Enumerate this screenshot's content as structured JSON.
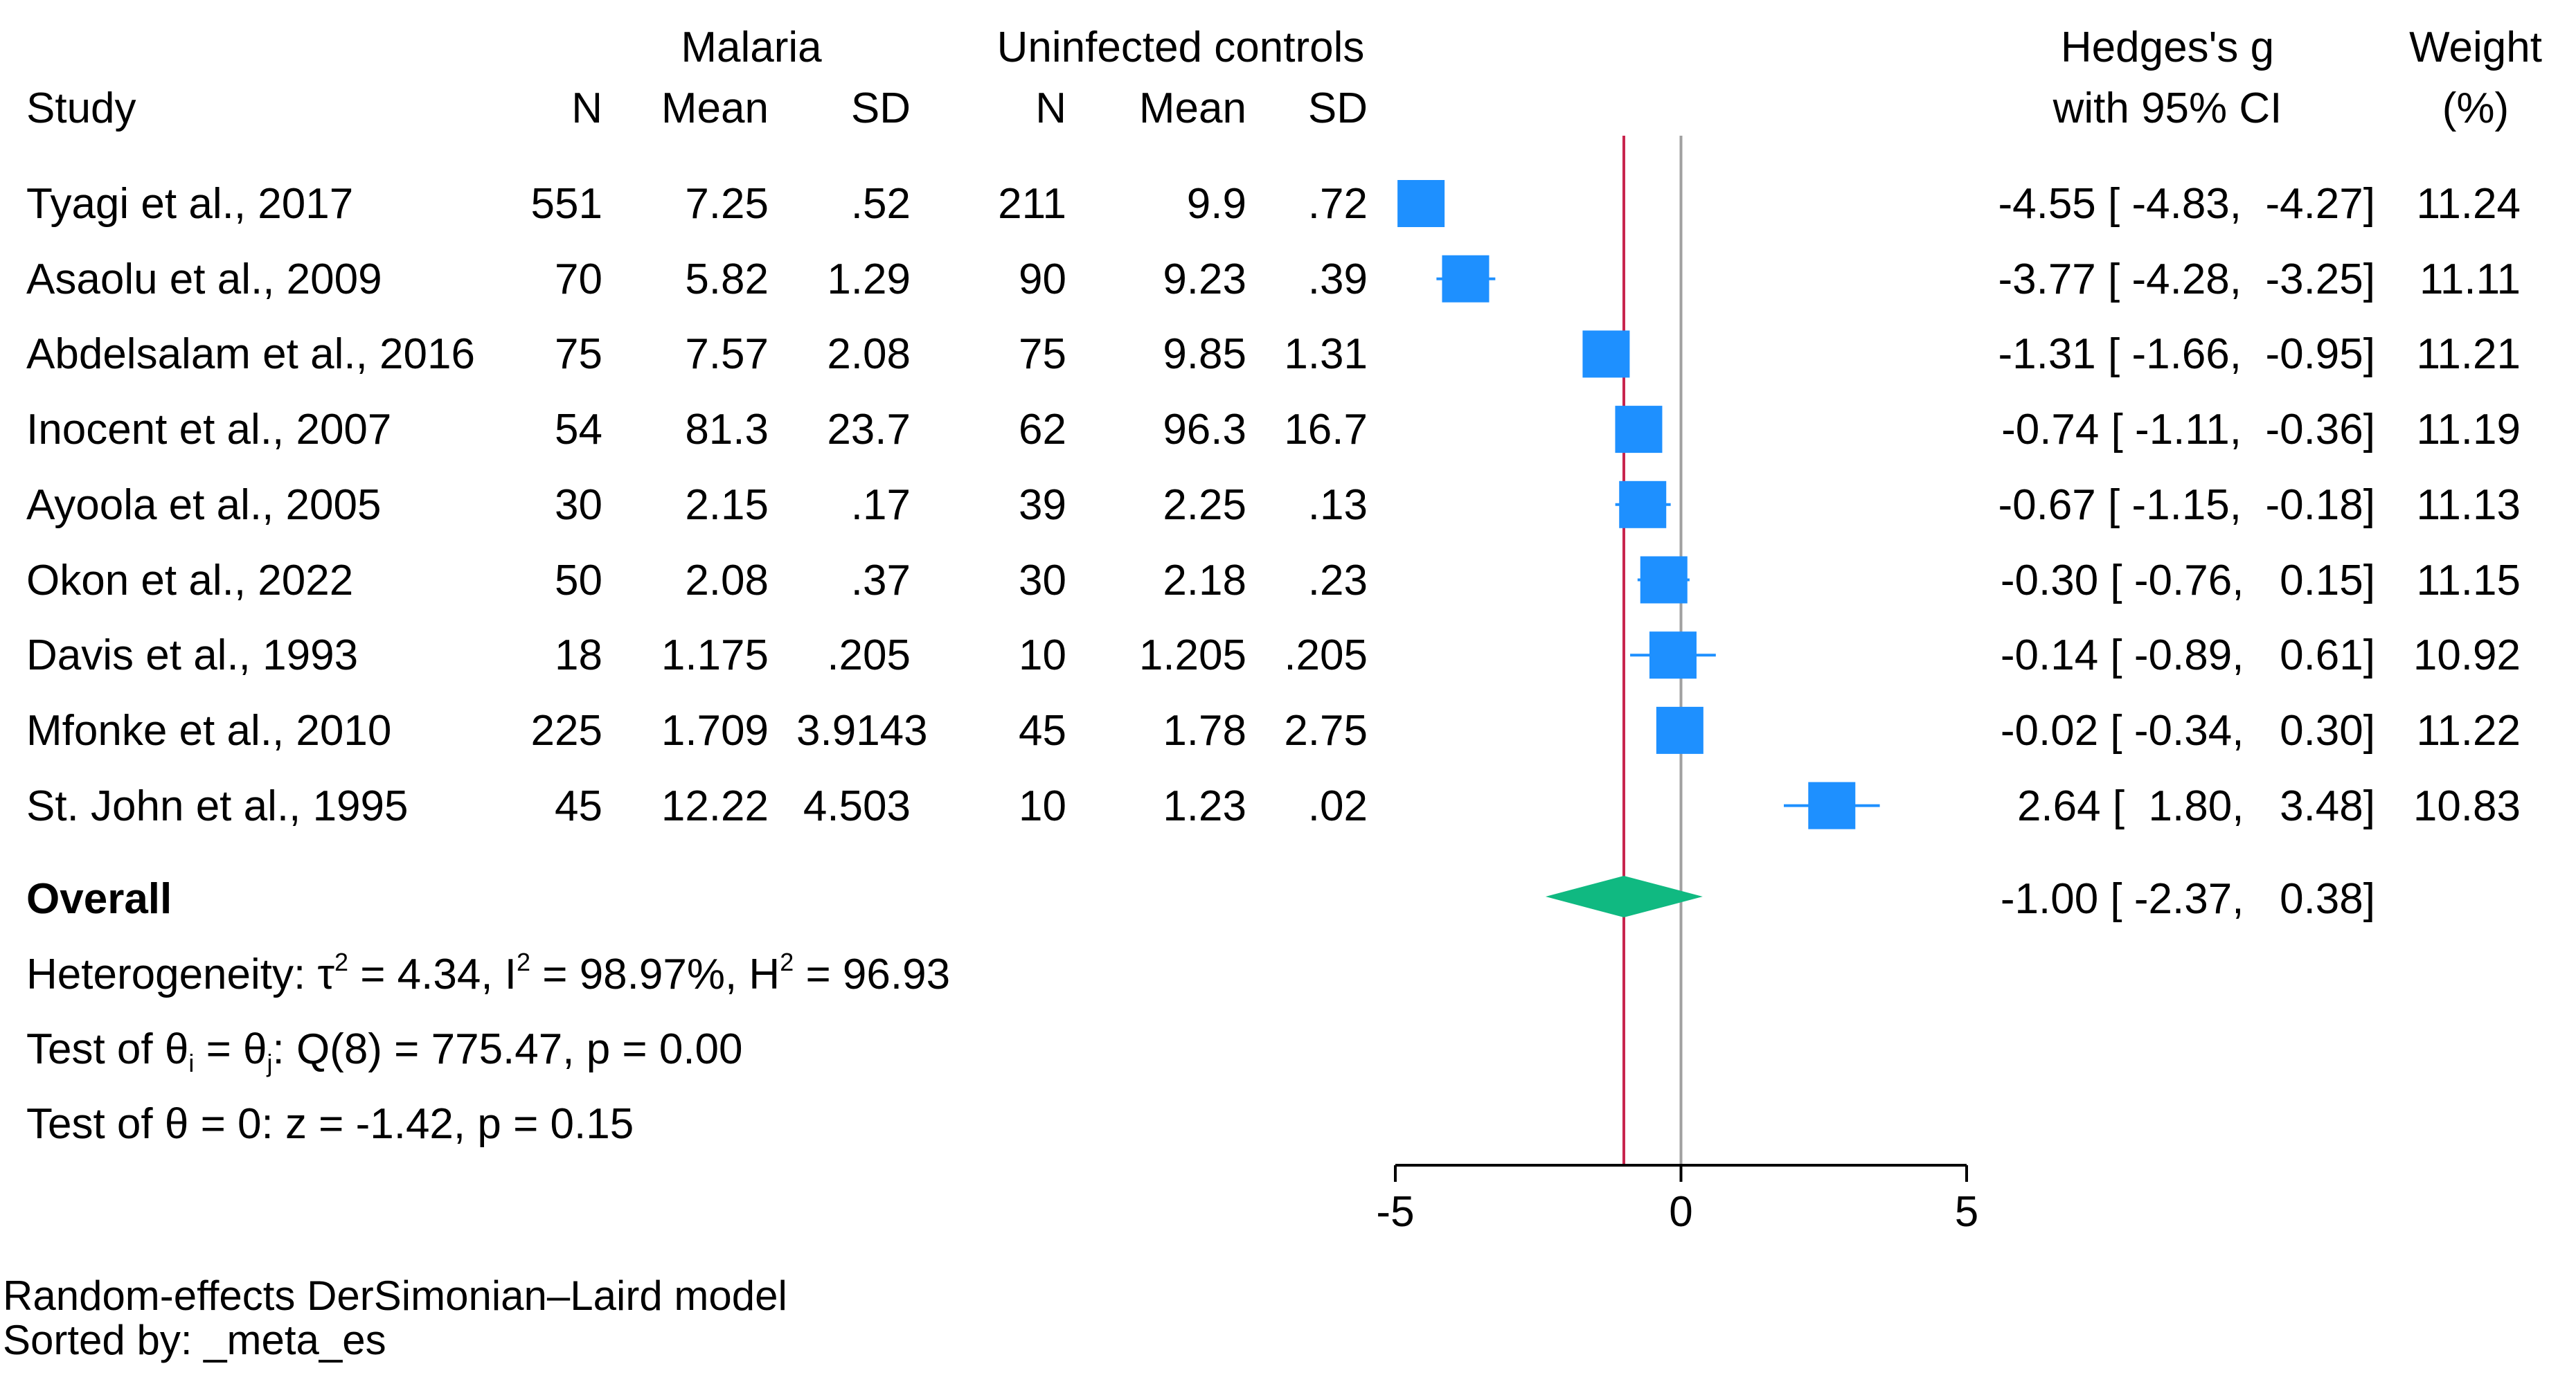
{
  "header": {
    "group1": "Malaria",
    "group2": "Uninfected controls",
    "col_study": "Study",
    "col_n1": "N",
    "col_mean1": "Mean",
    "col_sd1": "SD",
    "col_n2": "N",
    "col_mean2": "Mean",
    "col_sd2": "SD",
    "col_es_line1": "Hedges's g",
    "col_es_line2": "with 95% CI",
    "col_w_line1": "Weight",
    "col_w_line2": "(%)"
  },
  "chart_data": {
    "type": "forest",
    "xlim": [
      -5,
      5
    ],
    "xticks": [
      -5,
      0,
      5
    ],
    "xtick_labels": [
      "-5",
      "0",
      "5"
    ],
    "reference_line": 0,
    "overall_line": -1.0,
    "colors": {
      "marker": "#1e90ff",
      "diamond": "#10b981",
      "overall_line": "#c8254e",
      "zero_line": "#a0a0a0"
    },
    "studies": [
      {
        "study": "Tyagi et al., 2017",
        "n1": "551",
        "mean1": "7.25",
        "sd1": ".52",
        "n2": "211",
        "mean2": "9.9",
        "sd2": ".72",
        "g": -4.55,
        "lo": -4.83,
        "hi": -4.27,
        "weight": 11.24,
        "es_text": "-4.55 [ -4.83,  -4.27]",
        "w_text": "11.24"
      },
      {
        "study": "Asaolu et al., 2009",
        "n1": "70",
        "mean1": "5.82",
        "sd1": "1.29",
        "n2": "90",
        "mean2": "9.23",
        "sd2": ".39",
        "g": -3.77,
        "lo": -4.28,
        "hi": -3.25,
        "weight": 11.11,
        "es_text": "-3.77 [ -4.28,  -3.25]",
        "w_text": "11.11"
      },
      {
        "study": "Abdelsalam et al., 2016",
        "n1": "75",
        "mean1": "7.57",
        "sd1": "2.08",
        "n2": "75",
        "mean2": "9.85",
        "sd2": "1.31",
        "g": -1.31,
        "lo": -1.66,
        "hi": -0.95,
        "weight": 11.21,
        "es_text": "-1.31 [ -1.66,  -0.95]",
        "w_text": "11.21"
      },
      {
        "study": "Inocent et al., 2007",
        "n1": "54",
        "mean1": "81.3",
        "sd1": "23.7",
        "n2": "62",
        "mean2": "96.3",
        "sd2": "16.7",
        "g": -0.74,
        "lo": -1.11,
        "hi": -0.36,
        "weight": 11.19,
        "es_text": "-0.74 [ -1.11,  -0.36]",
        "w_text": "11.19"
      },
      {
        "study": "Ayoola et al., 2005",
        "n1": "30",
        "mean1": "2.15",
        "sd1": ".17",
        "n2": "39",
        "mean2": "2.25",
        "sd2": ".13",
        "g": -0.67,
        "lo": -1.15,
        "hi": -0.18,
        "weight": 11.13,
        "es_text": "-0.67 [ -1.15,  -0.18]",
        "w_text": "11.13"
      },
      {
        "study": "Okon et al., 2022",
        "n1": "50",
        "mean1": "2.08",
        "sd1": ".37",
        "n2": "30",
        "mean2": "2.18",
        "sd2": ".23",
        "g": -0.3,
        "lo": -0.76,
        "hi": 0.15,
        "weight": 11.15,
        "es_text": "-0.30 [ -0.76,   0.15]",
        "w_text": "11.15"
      },
      {
        "study": "Davis et al., 1993",
        "n1": "18",
        "mean1": "1.175",
        "sd1": ".205",
        "n2": "10",
        "mean2": "1.205",
        "sd2": ".205",
        "g": -0.14,
        "lo": -0.89,
        "hi": 0.61,
        "weight": 10.92,
        "es_text": "-0.14 [ -0.89,   0.61]",
        "w_text": "10.92"
      },
      {
        "study": "Mfonke et al., 2010",
        "n1": "225",
        "mean1": "1.709",
        "sd1": "3.9143",
        "n2": "45",
        "mean2": "1.78",
        "sd2": "2.75",
        "g": -0.02,
        "lo": -0.34,
        "hi": 0.3,
        "weight": 11.22,
        "es_text": "-0.02 [ -0.34,   0.30]",
        "w_text": "11.22"
      },
      {
        "study": "St. John et al., 1995",
        "n1": "45",
        "mean1": "12.22",
        "sd1": "4.503",
        "n2": "10",
        "mean2": "1.23",
        "sd2": ".02",
        "g": 2.64,
        "lo": 1.8,
        "hi": 3.48,
        "weight": 10.83,
        "es_text": "2.64 [  1.80,   3.48]",
        "w_text": "10.83"
      }
    ],
    "overall": {
      "label": "Overall",
      "g": -1.0,
      "lo": -2.37,
      "hi": 0.38,
      "es_text": "-1.00 [ -2.37,   0.38]"
    }
  },
  "stats": {
    "heterogeneity_prefix": "Heterogeneity: τ",
    "tau_sup": "2",
    "tau_val": " = 4.34, I",
    "i_sup": "2",
    "i_val": " = 98.97%, H",
    "h_sup": "2",
    "h_val": " = 96.93",
    "test1_a": "Test of θ",
    "test1_sub1": "i",
    "test1_b": " = θ",
    "test1_sub2": "j",
    "test1_c": ": Q(8) = 775.47, p = 0.00",
    "test2": "Test of θ = 0: z = -1.42, p = 0.15"
  },
  "footer": {
    "model": "Random-effects DerSimonian–Laird model",
    "sorted": "Sorted by: _meta_es"
  }
}
